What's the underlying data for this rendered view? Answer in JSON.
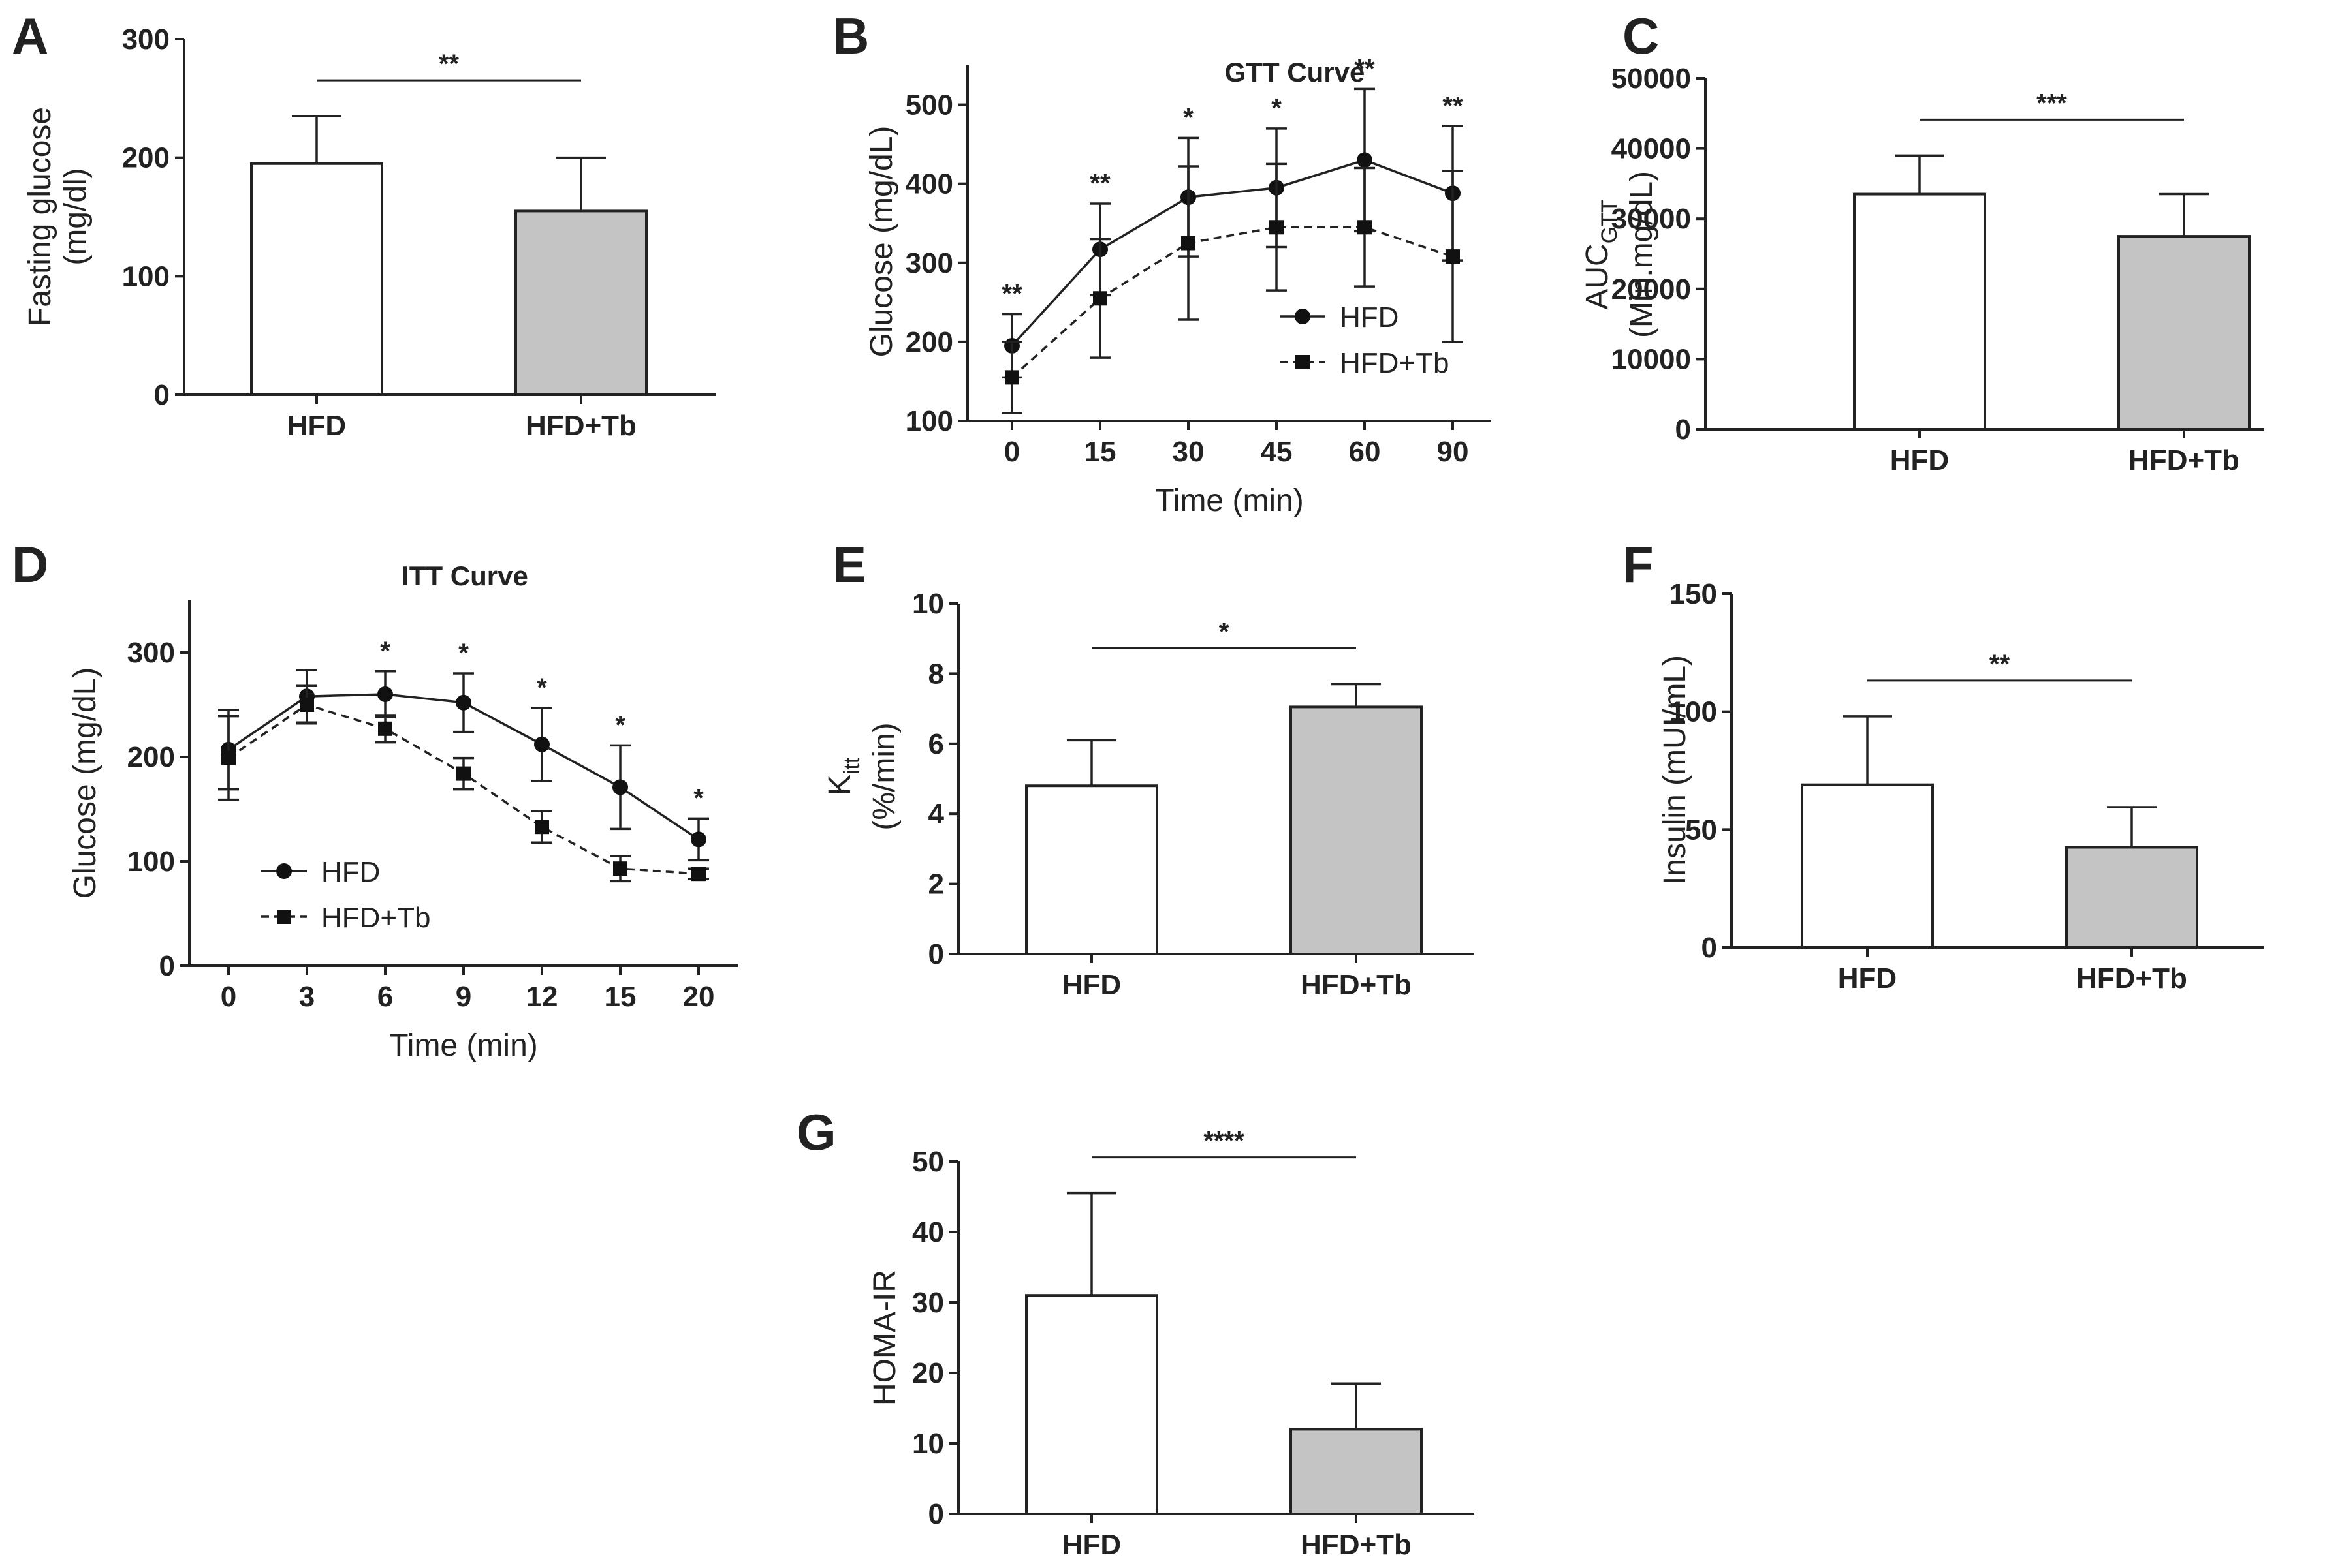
{
  "chart_data": [
    {
      "id": "A",
      "panel_label": "A",
      "type": "bar",
      "title": "",
      "xlabel": "",
      "ylabel_lines": [
        "Fasting glucose",
        "(mg/dl)"
      ],
      "ylabel_sub": "",
      "ylim": [
        0,
        300
      ],
      "yticks": [
        "0",
        "100",
        "200",
        "300"
      ],
      "categories": [
        "HFD",
        "HFD+Tb"
      ],
      "values": [
        195,
        155
      ],
      "errors": [
        40,
        45
      ],
      "colors": [
        "#ffffff",
        "#c4c4c4"
      ],
      "significance": "**"
    },
    {
      "id": "B",
      "panel_label": "B",
      "type": "line",
      "title": "GTT Curve",
      "xlabel": "Time (min)",
      "ylabel_lines": [
        "Glucose (mg/dL)"
      ],
      "ylabel_sub": "",
      "ylim": [
        100,
        550
      ],
      "yticks": [
        "100",
        "200",
        "300",
        "400",
        "500"
      ],
      "categories": [
        "0",
        "15",
        "30",
        "45",
        "60",
        "90"
      ],
      "series": [
        {
          "name": "HFD",
          "marker": "circle",
          "dash": "solid",
          "values": [
            195,
            317,
            383,
            395,
            430,
            388
          ],
          "errors": [
            40,
            58,
            75,
            75,
            90,
            85
          ]
        },
        {
          "name": "HFD+Tb",
          "marker": "square",
          "dash": "dashed",
          "values": [
            155,
            255,
            325,
            345,
            345,
            308
          ],
          "errors": [
            45,
            75,
            97,
            80,
            75,
            108
          ]
        }
      ],
      "significance": [
        "**",
        "**",
        "*",
        "*",
        "**",
        "**"
      ]
    },
    {
      "id": "C",
      "panel_label": "C",
      "type": "bar",
      "title": "",
      "xlabel": "",
      "ylabel_lines": [
        "AUC",
        "(Min.mg/dL)"
      ],
      "ylabel_sub": "GTT",
      "ylim": [
        0,
        50000
      ],
      "yticks": [
        "0",
        "10000",
        "20000",
        "30000",
        "40000",
        "50000"
      ],
      "categories": [
        "HFD",
        "HFD+Tb"
      ],
      "values": [
        33500,
        27500
      ],
      "errors": [
        5500,
        6000
      ],
      "colors": [
        "#ffffff",
        "#c4c4c4"
      ],
      "significance": "***"
    },
    {
      "id": "D",
      "panel_label": "D",
      "type": "line",
      "title": "ITT Curve",
      "xlabel": "Time (min)",
      "ylabel_lines": [
        "Glucose (mg/dL)"
      ],
      "ylabel_sub": "",
      "ylim": [
        0,
        350
      ],
      "yticks": [
        "0",
        "100",
        "200",
        "300"
      ],
      "categories": [
        "0",
        "3",
        "6",
        "9",
        "12",
        "15",
        "20"
      ],
      "series": [
        {
          "name": "HFD",
          "marker": "circle",
          "dash": "solid",
          "values": [
            207,
            258,
            260,
            252,
            212,
            171,
            121
          ],
          "errors": [
            38,
            25,
            22,
            28,
            35,
            40,
            20
          ]
        },
        {
          "name": "HFD+Tb",
          "marker": "square",
          "dash": "dashed",
          "values": [
            199,
            250,
            227,
            184,
            133,
            93,
            88
          ],
          "errors": [
            40,
            18,
            13,
            15,
            15,
            12,
            5
          ]
        }
      ],
      "significance": [
        "",
        "",
        "*",
        "*",
        "*",
        "*",
        "*"
      ]
    },
    {
      "id": "E",
      "panel_label": "E",
      "type": "bar",
      "title": "",
      "xlabel": "",
      "ylabel_lines": [
        "K",
        "(%/min)"
      ],
      "ylabel_sub": "itt",
      "ylim": [
        0,
        10
      ],
      "yticks": [
        "0",
        "2",
        "4",
        "6",
        "8",
        "10"
      ],
      "categories": [
        "HFD",
        "HFD+Tb"
      ],
      "values": [
        4.8,
        7.05
      ],
      "errors": [
        1.3,
        0.65
      ],
      "colors": [
        "#ffffff",
        "#c4c4c4"
      ],
      "significance": "*"
    },
    {
      "id": "F",
      "panel_label": "F",
      "type": "bar",
      "title": "",
      "xlabel": "",
      "ylabel_lines": [
        "Insulin (mUI/mL)"
      ],
      "ylabel_sub": "",
      "ylim": [
        0,
        150
      ],
      "yticks": [
        "0",
        "50",
        "100",
        "150"
      ],
      "categories": [
        "HFD",
        "HFD+Tb"
      ],
      "values": [
        69,
        42.5
      ],
      "errors": [
        29,
        17
      ],
      "colors": [
        "#ffffff",
        "#c4c4c4"
      ],
      "significance": "**"
    },
    {
      "id": "G",
      "panel_label": "G",
      "type": "bar",
      "title": "",
      "xlabel": "",
      "ylabel_lines": [
        "HOMA-IR"
      ],
      "ylabel_sub": "",
      "ylim": [
        0,
        50
      ],
      "yticks": [
        "0",
        "10",
        "20",
        "30",
        "40",
        "50"
      ],
      "categories": [
        "HFD",
        "HFD+Tb"
      ],
      "values": [
        31,
        12
      ],
      "errors": [
        14.5,
        6.5
      ],
      "colors": [
        "#ffffff",
        "#c4c4c4"
      ],
      "significance": "****"
    }
  ]
}
